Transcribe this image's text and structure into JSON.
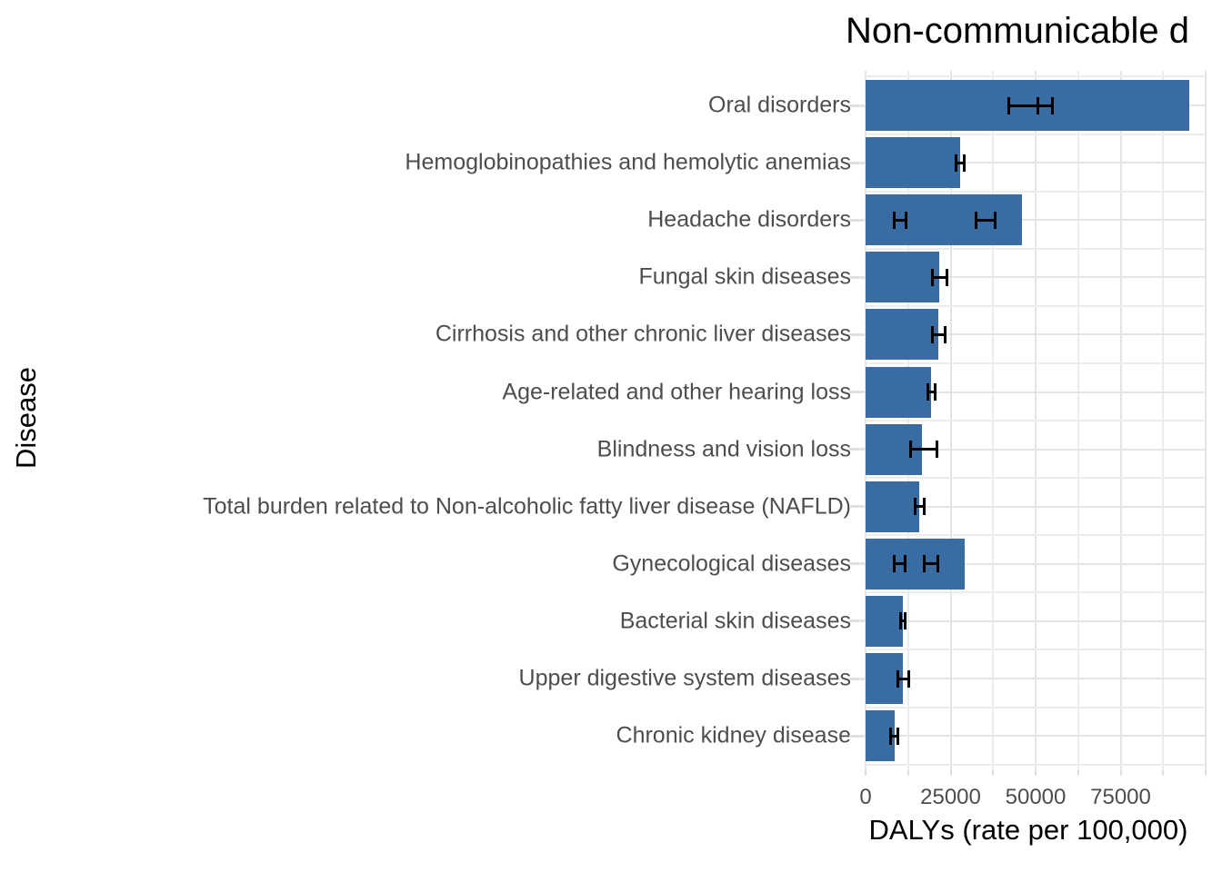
{
  "title": "Non-communicable d",
  "axes": {
    "x_label": "DALYs (rate per 100,000)",
    "y_label": "Disease"
  },
  "colors": {
    "bar": "#396CA3",
    "grid_major": "#E4E4E4",
    "grid_minor": "#ECECEC",
    "axis_tick": "#E0E0E0",
    "tick_text": "#4D4D4D",
    "error_bar": "#000000",
    "title_text": "#000000"
  },
  "chart_data": {
    "type": "bar",
    "orientation": "horizontal",
    "title": "Non-communicable d",
    "xlabel": "DALYs (rate per 100,000)",
    "ylabel": "Disease",
    "xlim": [
      0,
      100000
    ],
    "x_ticks": [
      0,
      25000,
      50000,
      75000
    ],
    "x_tick_labels": [
      "0",
      "25000",
      "50000",
      "75000"
    ],
    "grid_step_minor": 12500,
    "grid": true,
    "legend": false,
    "categories": [
      "Oral disorders",
      "Hemoglobinopathies and hemolytic anemias",
      "Headache disorders",
      "Fungal skin diseases",
      "Cirrhosis and other chronic liver diseases",
      "Age-related and other hearing loss",
      "Blindness and vision loss",
      "Total burden related to Non-alcoholic fatty liver disease (NAFLD)",
      "Gynecological diseases",
      "Bacterial skin diseases",
      "Upper digestive system diseases",
      "Chronic kidney disease"
    ],
    "values": [
      95300,
      27800,
      45900,
      21600,
      21500,
      19300,
      16600,
      15800,
      29100,
      10900,
      10900,
      8500
    ],
    "error_bars": [
      [
        [
          42200,
          50700
        ],
        [
          50700,
          54900
        ]
      ],
      [
        [
          26700,
          28900
        ]
      ],
      [
        [
          8400,
          12000
        ],
        [
          32400,
          38200
        ]
      ],
      [
        [
          19600,
          24000
        ]
      ],
      [
        [
          19600,
          23500
        ]
      ],
      [
        [
          18200,
          20500
        ]
      ],
      [
        [
          13300,
          20900
        ]
      ],
      [
        [
          14700,
          17300
        ]
      ],
      [
        [
          8400,
          11500
        ],
        [
          17300,
          21300
        ]
      ],
      [
        [
          10200,
          11500
        ]
      ],
      [
        [
          9500,
          12700
        ]
      ],
      [
        [
          7400,
          9500
        ]
      ]
    ]
  }
}
